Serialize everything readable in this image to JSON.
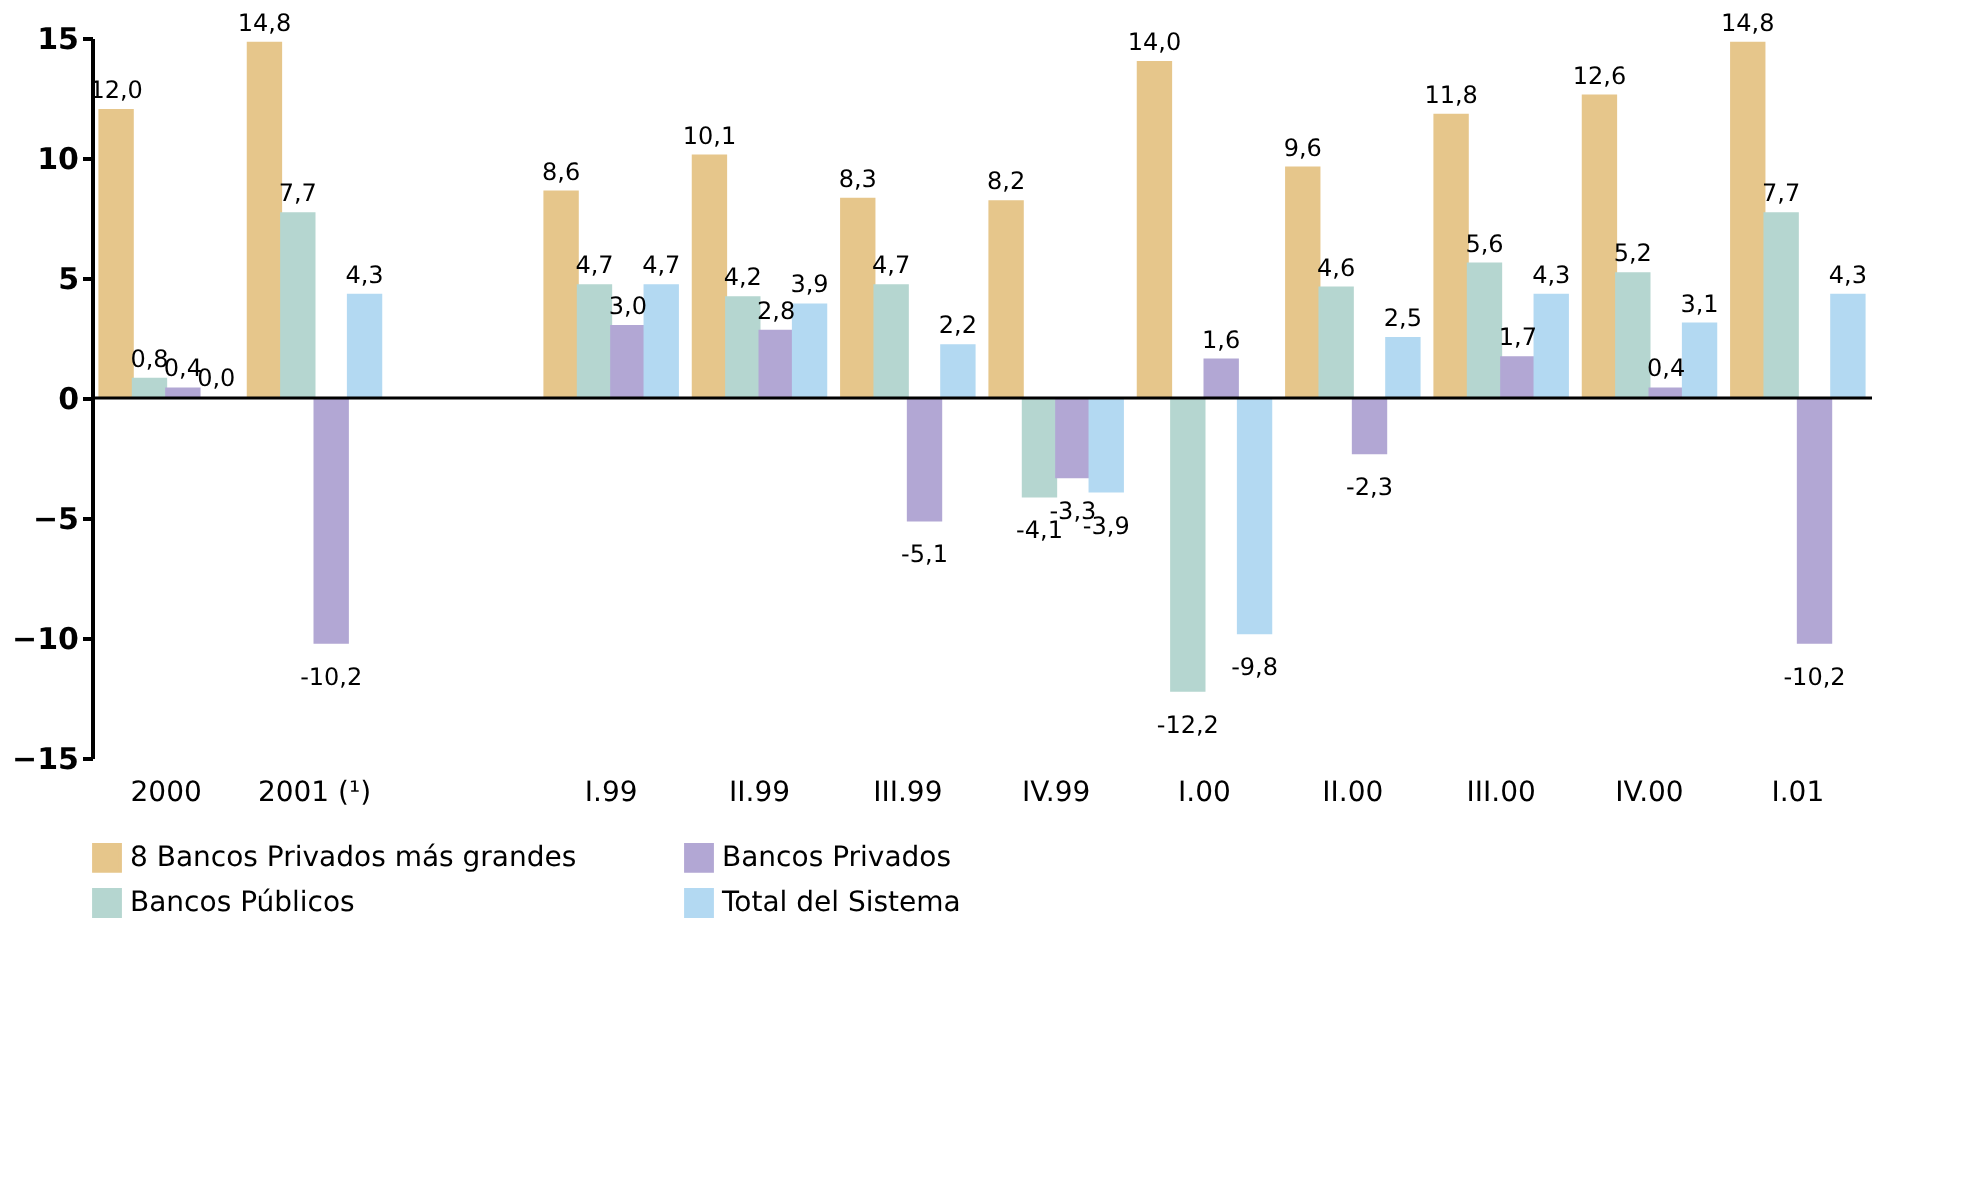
{
  "chart_data": {
    "type": "bar",
    "categories": [
      "2000",
      "2001 (¹)",
      null,
      "I.99",
      "II.99",
      "III.99",
      "IV.99",
      "I.00",
      "II.00",
      "III.00",
      "IV.00",
      "I.01"
    ],
    "series": [
      {
        "name": "8 Bancos Privados más grandes",
        "color": "#e6c68b",
        "values": [
          12.0,
          14.8,
          null,
          8.6,
          10.1,
          8.3,
          8.2,
          14.0,
          9.6,
          11.8,
          12.6,
          14.8
        ],
        "value_labels": [
          "12,0",
          "14,8",
          null,
          "8,6",
          "10,1",
          "8,3",
          "8,2",
          "14,0",
          "9,6",
          "11,8",
          "12,6",
          "14,8"
        ]
      },
      {
        "name": "Bancos Públicos",
        "color": "#b5d6d0",
        "values": [
          0.8,
          7.7,
          null,
          4.7,
          4.2,
          4.7,
          -4.1,
          -12.2,
          4.6,
          5.6,
          5.2,
          7.7
        ],
        "value_labels": [
          "0,8",
          "7,7",
          null,
          "4,7",
          "4,2",
          "4,7",
          "-4,1",
          "-12,2",
          "4,6",
          "5,6",
          "5,2",
          "7,7"
        ]
      },
      {
        "name": "Bancos Privados",
        "color": "#b2a7d4",
        "values": [
          0.4,
          -10.2,
          null,
          3.0,
          2.8,
          -5.1,
          -3.3,
          1.6,
          -2.3,
          1.7,
          0.4,
          -10.2
        ],
        "value_labels": [
          "0,4",
          "-10,2",
          null,
          "3,0",
          "2,8",
          "-5,1",
          "-3,3",
          "1,6",
          "-2,3",
          "1,7",
          "0,4",
          "-10,2"
        ]
      },
      {
        "name": "Total del Sistema",
        "color": "#b3d9f2",
        "values": [
          0.0,
          4.3,
          null,
          4.7,
          3.9,
          2.2,
          -3.9,
          -9.8,
          2.5,
          4.3,
          3.1,
          4.3
        ],
        "value_labels": [
          "0,0",
          "4,3",
          null,
          "4,7",
          "3,9",
          "2,2",
          "-3,9",
          "-9,8",
          "2,5",
          "4,3",
          "3,1",
          "4,3"
        ]
      }
    ],
    "ylim": [
      -15,
      15
    ],
    "yticks": [
      -15,
      -10,
      -5,
      0,
      5,
      10,
      15
    ],
    "ref_lines": [
      {
        "axis": "y",
        "value": 0
      }
    ],
    "legend": "bottom"
  }
}
